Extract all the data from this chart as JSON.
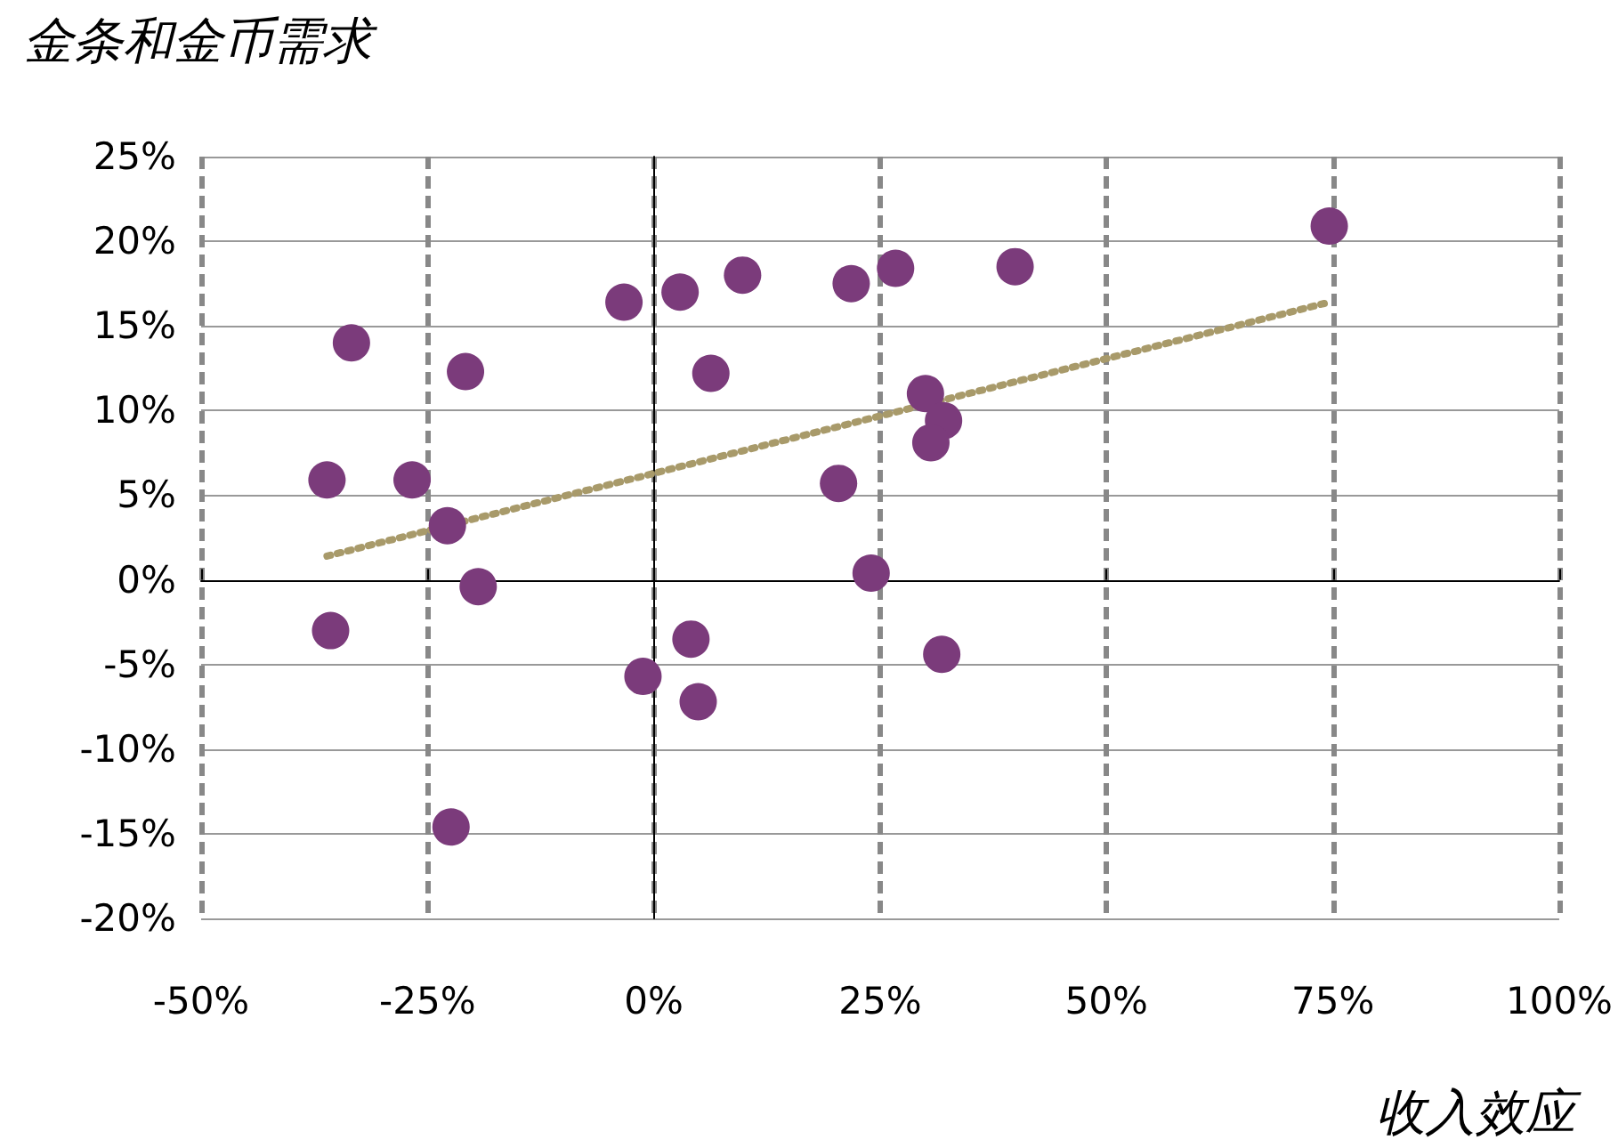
{
  "chart_data": {
    "type": "scatter",
    "title": "金条和金币需求",
    "xlabel": "收入效应",
    "xlim": [
      -50,
      100
    ],
    "xticks": [
      {
        "value": -50,
        "label": "-50%"
      },
      {
        "value": -25,
        "label": "-25%"
      },
      {
        "value": 0,
        "label": "0%"
      },
      {
        "value": 25,
        "label": "25%"
      },
      {
        "value": 50,
        "label": "50%"
      },
      {
        "value": 75,
        "label": "75%"
      },
      {
        "value": 100,
        "label": "100%"
      }
    ],
    "ylim": [
      -20,
      25
    ],
    "yticks": [
      {
        "value": -20,
        "label": "-20%"
      },
      {
        "value": -15,
        "label": "-15%"
      },
      {
        "value": -10,
        "label": "-10%"
      },
      {
        "value": -5,
        "label": "-5%"
      },
      {
        "value": 0,
        "label": "0%"
      },
      {
        "value": 5,
        "label": "5%"
      },
      {
        "value": 10,
        "label": "10%"
      },
      {
        "value": 15,
        "label": "15%"
      },
      {
        "value": 20,
        "label": "20%"
      },
      {
        "value": 25,
        "label": "25%"
      }
    ],
    "grid": true,
    "marker": "circle",
    "series": [
      {
        "type": "scatter",
        "color": "#7b3b7b",
        "x": [
          -33.4,
          -36.1,
          -26.7,
          -20.8,
          -22.8,
          -19.4,
          -35.7,
          -22.4,
          -3.3,
          2.9,
          9.8,
          6.3,
          21.8,
          26.7,
          39.9,
          74.6,
          30.0,
          32.0,
          30.6,
          20.4,
          24.0,
          4.1,
          -1.2,
          4.9,
          31.8
        ],
        "values": [
          14.0,
          5.9,
          5.9,
          12.3,
          3.2,
          -0.4,
          -3.0,
          -14.6,
          16.4,
          17.0,
          18.0,
          12.2,
          17.5,
          18.4,
          18.5,
          20.9,
          11.0,
          9.4,
          8.1,
          5.7,
          0.4,
          -3.5,
          -5.7,
          -7.2,
          -4.4
        ]
      },
      {
        "type": "line",
        "color": "#a89a6a",
        "line_style": "dotted",
        "marker": "none",
        "x": [
          -36.1,
          74.6
        ],
        "values": [
          1.4,
          16.4
        ]
      }
    ]
  }
}
